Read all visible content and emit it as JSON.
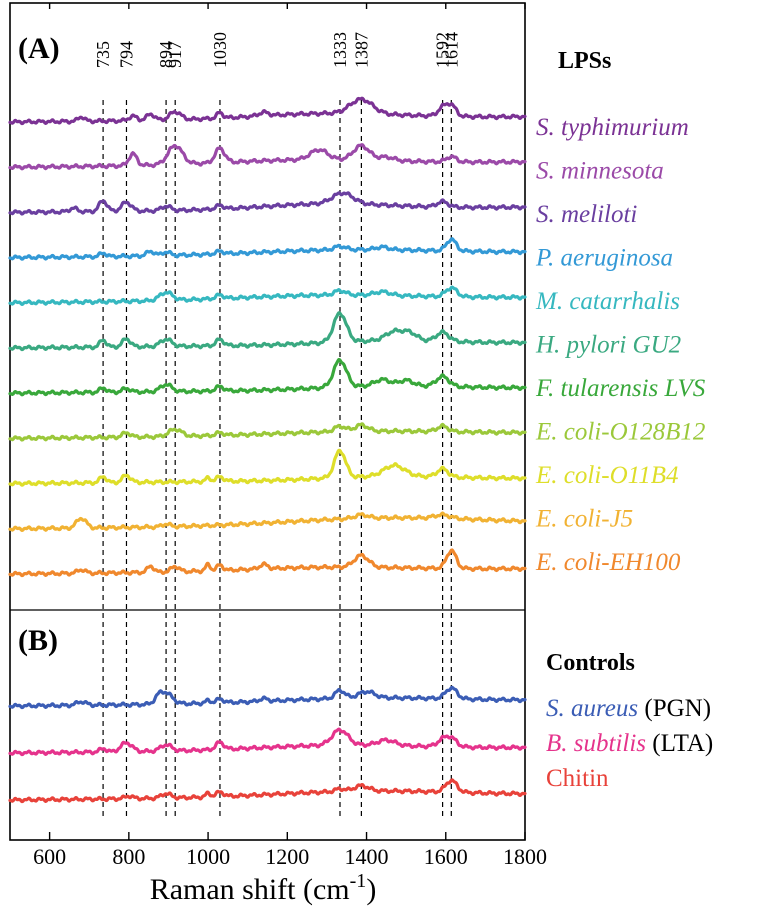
{
  "chart_data": {
    "type": "line",
    "xlabel": "Raman shift (cm",
    "xlabel_sup": "-1",
    "xlabel_end": ")",
    "xlim": [
      500,
      1800
    ],
    "xticks": [
      600,
      800,
      1000,
      1200,
      1400,
      1600,
      1800
    ],
    "grid": false,
    "reference_peaks": [
      735,
      794,
      894,
      917,
      1030,
      1333,
      1387,
      1592,
      1614
    ],
    "panels": [
      {
        "label": "(A)",
        "group_title": "LPSs",
        "series": [
          {
            "name": "S. typhimurium",
            "suffix": "",
            "color": "#7b3294",
            "peaks": [
              {
                "x": 680,
                "h": 0.5,
                "w": 8
              },
              {
                "x": 810,
                "h": 0.5,
                "w": 10
              },
              {
                "x": 855,
                "h": 0.7,
                "w": 10
              },
              {
                "x": 917,
                "h": 0.9,
                "w": 14
              },
              {
                "x": 1030,
                "h": 0.6,
                "w": 8
              },
              {
                "x": 1140,
                "h": 0.4,
                "w": 12
              },
              {
                "x": 1387,
                "h": 1.6,
                "w": 28
              },
              {
                "x": 1592,
                "h": 0.9,
                "w": 12
              },
              {
                "x": 1614,
                "h": 1.2,
                "w": 12
              }
            ],
            "bumps": [
              {
                "x": 1300,
                "h": 0.6,
                "w": 180
              }
            ]
          },
          {
            "name": "S. minnesota",
            "suffix": "",
            "color": "#9b4aa8",
            "peaks": [
              {
                "x": 810,
                "h": 1.3,
                "w": 10
              },
              {
                "x": 917,
                "h": 2.1,
                "w": 18
              },
              {
                "x": 1030,
                "h": 1.6,
                "w": 12
              },
              {
                "x": 1280,
                "h": 1.1,
                "w": 22
              },
              {
                "x": 1387,
                "h": 1.6,
                "w": 20
              },
              {
                "x": 1450,
                "h": 0.4,
                "w": 20
              },
              {
                "x": 1614,
                "h": 0.6,
                "w": 12
              }
            ],
            "bumps": [
              {
                "x": 1250,
                "h": 0.5,
                "w": 200
              }
            ]
          },
          {
            "name": "S. meliloti",
            "suffix": "",
            "color": "#6a3fa0",
            "peaks": [
              {
                "x": 660,
                "h": 0.4,
                "w": 10
              },
              {
                "x": 735,
                "h": 1.2,
                "w": 10
              },
              {
                "x": 794,
                "h": 1.0,
                "w": 12
              },
              {
                "x": 894,
                "h": 0.5,
                "w": 12
              },
              {
                "x": 1030,
                "h": 0.4,
                "w": 10
              },
              {
                "x": 1340,
                "h": 1.2,
                "w": 26
              },
              {
                "x": 1592,
                "h": 0.6,
                "w": 14
              }
            ],
            "bumps": [
              {
                "x": 1300,
                "h": 0.6,
                "w": 160
              }
            ]
          },
          {
            "name": "P. aeruginosa",
            "suffix": "",
            "color": "#3399d6",
            "peaks": [
              {
                "x": 735,
                "h": 0.4,
                "w": 8
              },
              {
                "x": 855,
                "h": 0.5,
                "w": 10
              },
              {
                "x": 894,
                "h": 0.4,
                "w": 10
              },
              {
                "x": 1030,
                "h": 0.3,
                "w": 10
              },
              {
                "x": 1333,
                "h": 0.4,
                "w": 14
              },
              {
                "x": 1440,
                "h": 0.3,
                "w": 16
              },
              {
                "x": 1614,
                "h": 1.3,
                "w": 12
              }
            ],
            "bumps": [
              {
                "x": 1350,
                "h": 0.5,
                "w": 220
              }
            ]
          },
          {
            "name": "M. catarrhalis",
            "suffix": "",
            "color": "#36b8c0",
            "peaks": [
              {
                "x": 894,
                "h": 0.9,
                "w": 16
              },
              {
                "x": 1030,
                "h": 0.4,
                "w": 10
              },
              {
                "x": 1333,
                "h": 0.5,
                "w": 14
              },
              {
                "x": 1440,
                "h": 0.4,
                "w": 20
              },
              {
                "x": 1614,
                "h": 1.0,
                "w": 14
              }
            ],
            "bumps": [
              {
                "x": 1300,
                "h": 0.5,
                "w": 220
              }
            ]
          },
          {
            "name": "H. pylori GU2",
            "suffix": "",
            "color": "#3aa981",
            "peaks": [
              {
                "x": 735,
                "h": 0.8,
                "w": 8
              },
              {
                "x": 794,
                "h": 0.9,
                "w": 10
              },
              {
                "x": 894,
                "h": 0.8,
                "w": 14
              },
              {
                "x": 1030,
                "h": 0.7,
                "w": 10
              },
              {
                "x": 1333,
                "h": 3.2,
                "w": 16
              },
              {
                "x": 1470,
                "h": 1.0,
                "w": 22
              },
              {
                "x": 1510,
                "h": 0.8,
                "w": 18
              },
              {
                "x": 1592,
                "h": 1.0,
                "w": 16
              }
            ],
            "bumps": [
              {
                "x": 1450,
                "h": 0.4,
                "w": 150
              }
            ]
          },
          {
            "name": "F. tularensis LVS",
            "suffix": "",
            "color": "#39a83b",
            "peaks": [
              {
                "x": 735,
                "h": 0.5,
                "w": 8
              },
              {
                "x": 794,
                "h": 0.4,
                "w": 10
              },
              {
                "x": 894,
                "h": 0.8,
                "w": 14
              },
              {
                "x": 1030,
                "h": 0.5,
                "w": 10
              },
              {
                "x": 1333,
                "h": 3.0,
                "w": 16
              },
              {
                "x": 1440,
                "h": 0.7,
                "w": 20
              },
              {
                "x": 1500,
                "h": 0.6,
                "w": 18
              },
              {
                "x": 1592,
                "h": 1.1,
                "w": 16
              }
            ],
            "bumps": [
              {
                "x": 1450,
                "h": 0.4,
                "w": 160
              }
            ]
          },
          {
            "name": "E. coli-O128B12",
            "suffix": "",
            "color": "#9bc83a",
            "peaks": [
              {
                "x": 794,
                "h": 0.5,
                "w": 10
              },
              {
                "x": 917,
                "h": 0.8,
                "w": 16
              },
              {
                "x": 1030,
                "h": 0.3,
                "w": 10
              },
              {
                "x": 1333,
                "h": 0.6,
                "w": 14
              },
              {
                "x": 1387,
                "h": 0.7,
                "w": 16
              },
              {
                "x": 1592,
                "h": 0.6,
                "w": 14
              }
            ],
            "bumps": [
              {
                "x": 1400,
                "h": 0.4,
                "w": 220
              }
            ]
          },
          {
            "name": "E. coli-O11B4",
            "suffix": "",
            "color": "#dede2a",
            "peaks": [
              {
                "x": 735,
                "h": 0.7,
                "w": 8
              },
              {
                "x": 794,
                "h": 0.8,
                "w": 10
              },
              {
                "x": 1000,
                "h": 0.4,
                "w": 6
              },
              {
                "x": 1030,
                "h": 0.5,
                "w": 10
              },
              {
                "x": 1333,
                "h": 3.0,
                "w": 14
              },
              {
                "x": 1470,
                "h": 1.2,
                "w": 26
              },
              {
                "x": 1592,
                "h": 0.9,
                "w": 14
              }
            ],
            "bumps": [
              {
                "x": 1450,
                "h": 0.4,
                "w": 150
              }
            ]
          },
          {
            "name": "E. coli-J5",
            "suffix": "",
            "color": "#f1b233",
            "peaks": [
              {
                "x": 680,
                "h": 1.1,
                "w": 12
              },
              {
                "x": 894,
                "h": 0.3,
                "w": 10
              },
              {
                "x": 1387,
                "h": 0.4,
                "w": 16
              },
              {
                "x": 1592,
                "h": 0.4,
                "w": 20
              }
            ],
            "bumps": [
              {
                "x": 1450,
                "h": 0.8,
                "w": 240
              }
            ]
          },
          {
            "name": "E. coli-EH100",
            "suffix": "",
            "color": "#f0882d",
            "peaks": [
              {
                "x": 680,
                "h": 0.4,
                "w": 10
              },
              {
                "x": 855,
                "h": 0.7,
                "w": 8
              },
              {
                "x": 917,
                "h": 0.6,
                "w": 10
              },
              {
                "x": 1000,
                "h": 0.7,
                "w": 6
              },
              {
                "x": 1030,
                "h": 0.6,
                "w": 8
              },
              {
                "x": 1140,
                "h": 0.5,
                "w": 10
              },
              {
                "x": 1387,
                "h": 1.3,
                "w": 18
              },
              {
                "x": 1614,
                "h": 2.0,
                "w": 12
              }
            ],
            "bumps": [
              {
                "x": 1300,
                "h": 0.4,
                "w": 200
              }
            ]
          }
        ]
      },
      {
        "label": "(B)",
        "group_title": "Controls",
        "series": [
          {
            "name": "S. aureus",
            "suffix": "(PGN)",
            "color": "#3b5db5",
            "peaks": [
              {
                "x": 680,
                "h": 0.4,
                "w": 12
              },
              {
                "x": 875,
                "h": 0.6,
                "w": 10
              },
              {
                "x": 894,
                "h": 1.2,
                "w": 16
              },
              {
                "x": 1000,
                "h": 0.3,
                "w": 6
              },
              {
                "x": 1030,
                "h": 0.4,
                "w": 10
              },
              {
                "x": 1140,
                "h": 0.3,
                "w": 10
              },
              {
                "x": 1333,
                "h": 0.9,
                "w": 12
              },
              {
                "x": 1400,
                "h": 0.7,
                "w": 20
              },
              {
                "x": 1614,
                "h": 1.2,
                "w": 14
              }
            ],
            "bumps": [
              {
                "x": 1400,
                "h": 0.5,
                "w": 220
              }
            ]
          },
          {
            "name": "B. subtilis",
            "suffix": "(LTA)",
            "color": "#e5338c",
            "peaks": [
              {
                "x": 735,
                "h": 0.4,
                "w": 8
              },
              {
                "x": 794,
                "h": 1.0,
                "w": 14
              },
              {
                "x": 894,
                "h": 0.7,
                "w": 14
              },
              {
                "x": 1030,
                "h": 0.8,
                "w": 10
              },
              {
                "x": 1333,
                "h": 1.7,
                "w": 20
              },
              {
                "x": 1450,
                "h": 0.6,
                "w": 22
              },
              {
                "x": 1592,
                "h": 0.7,
                "w": 14
              },
              {
                "x": 1614,
                "h": 0.9,
                "w": 14
              }
            ],
            "bumps": [
              {
                "x": 1330,
                "h": 0.5,
                "w": 200
              }
            ]
          },
          {
            "name": "Chitin",
            "suffix": "",
            "color": "#e8423a",
            "upright": true,
            "peaks": [
              {
                "x": 800,
                "h": 0.3,
                "w": 10
              },
              {
                "x": 894,
                "h": 0.5,
                "w": 12
              },
              {
                "x": 1000,
                "h": 0.4,
                "w": 6
              },
              {
                "x": 1030,
                "h": 0.5,
                "w": 10
              },
              {
                "x": 1333,
                "h": 0.3,
                "w": 12
              },
              {
                "x": 1387,
                "h": 0.6,
                "w": 18
              },
              {
                "x": 1614,
                "h": 1.3,
                "w": 14
              }
            ],
            "bumps": [
              {
                "x": 1400,
                "h": 0.6,
                "w": 220
              }
            ]
          }
        ]
      }
    ]
  }
}
